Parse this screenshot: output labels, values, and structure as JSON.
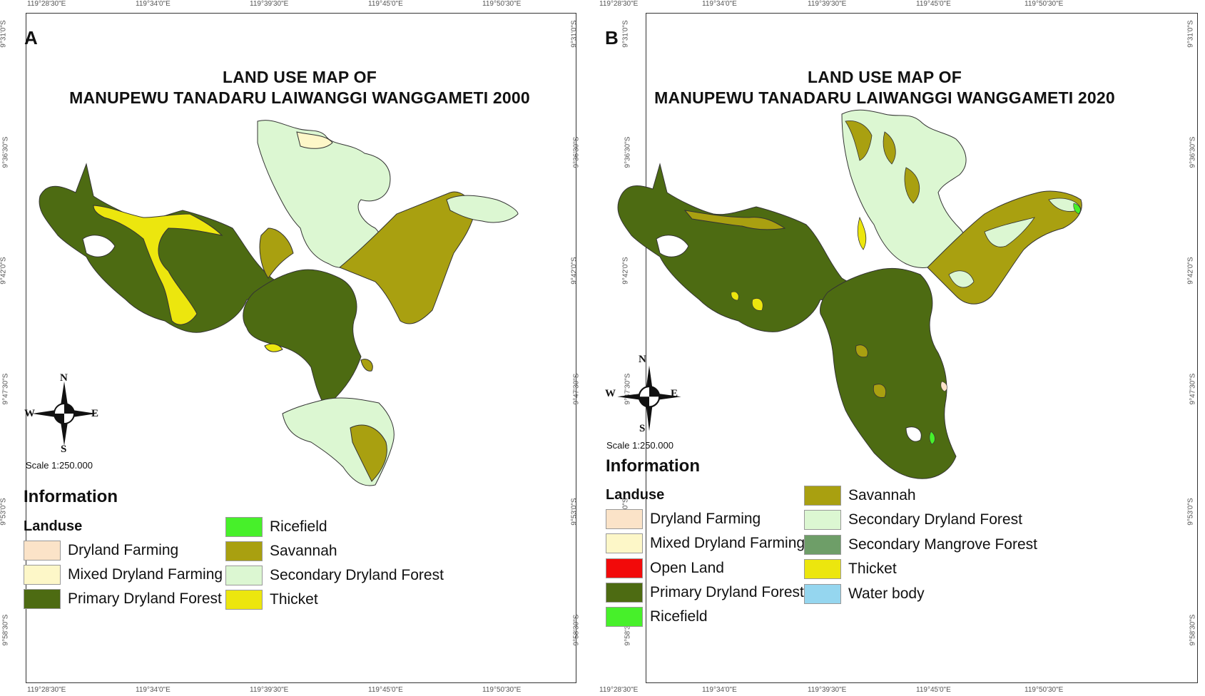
{
  "panels": {
    "a": {
      "letter": "A",
      "title_line1": "LAND USE MAP OF",
      "title_line2": "MANUPEWU TANADARU LAIWANGGI WANGGAMETI 2000",
      "scale": "Scale 1:250.000",
      "info": "Information",
      "landuse": "Landuse",
      "compass": {
        "n": "N",
        "s": "S",
        "e": "E",
        "w": "W"
      },
      "legend_left": [
        {
          "label": "Dryland Farming",
          "color": "#fbe3c8"
        },
        {
          "label": "Mixed Dryland Farming",
          "color": "#fdf7c8"
        },
        {
          "label": "Primary Dryland Forest",
          "color": "#4d6b12"
        }
      ],
      "legend_right": [
        {
          "label": "Ricefield",
          "color": "#47f02a"
        },
        {
          "label": "Savannah",
          "color": "#a9a010"
        },
        {
          "label": "Secondary Dryland Forest",
          "color": "#dcf7d2"
        },
        {
          "label": "Thicket",
          "color": "#ece60e"
        }
      ]
    },
    "b": {
      "letter": "B",
      "title_line1": "LAND USE MAP OF",
      "title_line2": "MANUPEWU TANADARU LAIWANGGI WANGGAMETI 2020",
      "scale": "Scale 1:250.000",
      "info": "Information",
      "landuse": "Landuse",
      "compass": {
        "n": "N",
        "s": "S",
        "e": "E",
        "w": "W"
      },
      "legend_left": [
        {
          "label": "Dryland Farming",
          "color": "#fbe3c8"
        },
        {
          "label": "Mixed Dryland Farming",
          "color": "#fdf7c8"
        },
        {
          "label": "Open Land",
          "color": "#f20a0a"
        },
        {
          "label": "Primary Dryland Forest",
          "color": "#4d6b12"
        },
        {
          "label": "Ricefield",
          "color": "#47f02a"
        }
      ],
      "legend_right": [
        {
          "label": "Savannah",
          "color": "#a9a010"
        },
        {
          "label": "Secondary Dryland Forest",
          "color": "#dcf7d2"
        },
        {
          "label": "Secondary Mangrove Forest",
          "color": "#6e9e68"
        },
        {
          "label": "Thicket",
          "color": "#ece60e"
        },
        {
          "label": "Water body",
          "color": "#95d6ef"
        }
      ]
    }
  },
  "coords": {
    "a_top": [
      "119°28'30\"E",
      "119°34'0\"E",
      "119°39'30\"E",
      "119°45'0\"E",
      "119°50'30\"E"
    ],
    "a_bottom": [
      "119°28'30\"E",
      "119°34'0\"E",
      "119°39'30\"E",
      "119°45'0\"E",
      "119°50'30\"E"
    ],
    "a_left": [
      "9°31'0\"S",
      "9°36'30\"S",
      "9°42'0\"S",
      "9°47'30\"S",
      "9°53'0\"S",
      "9°58'30\"S"
    ],
    "a_right": [
      "9°31'0\"S",
      "9°36'30\"S",
      "9°42'0\"S",
      "9°47'30\"S",
      "9°53'0\"S",
      "9°58'30\"S"
    ],
    "b_top": [
      "119°28'30\"E",
      "119°34'0\"E",
      "119°39'30\"E",
      "119°45'0\"E",
      "119°50'30\"E"
    ],
    "b_bottom": [
      "119°28'30\"E",
      "119°34'0\"E",
      "119°39'30\"E",
      "119°45'0\"E",
      "119°50'30\"E"
    ],
    "b_left": [
      "9°31'0\"S",
      "9°36'30\"S",
      "9°42'0\"S",
      "9°47'30\"S",
      "9°53'0\"S",
      "9°58'30\"S"
    ],
    "b_right": [
      "9°31'0\"S",
      "9°36'30\"S",
      "9°42'0\"S",
      "9°47'30\"S",
      "9°53'0\"S",
      "9°58'30\"S"
    ]
  }
}
